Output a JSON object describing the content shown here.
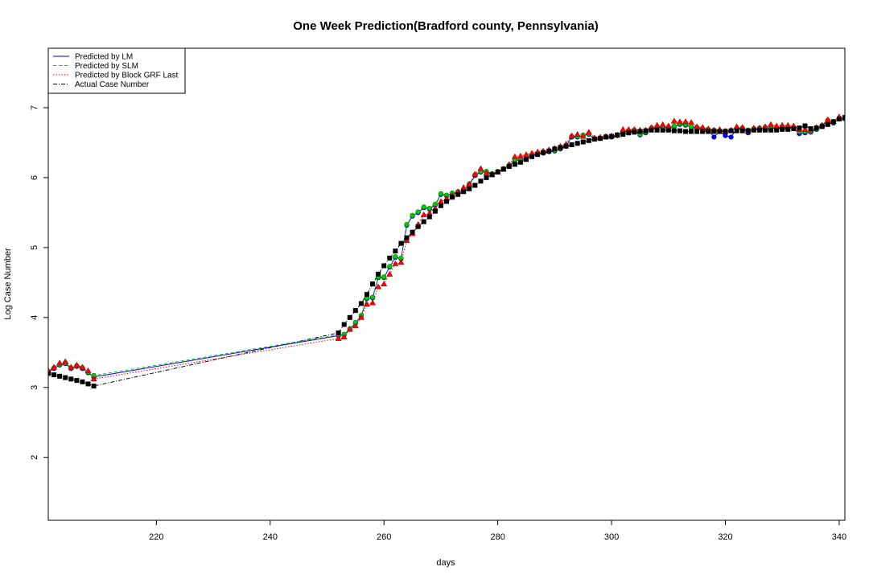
{
  "chart_data": {
    "type": "line",
    "title": "One Week Prediction(Bradford county, Pennsylvania)",
    "xlabel": "days",
    "ylabel": "Log Case Number",
    "xlim": [
      201,
      341
    ],
    "ylim": [
      1.1,
      7.85
    ],
    "x_ticks": [
      220,
      240,
      260,
      280,
      300,
      320,
      340
    ],
    "y_ticks": [
      2,
      3,
      4,
      5,
      6,
      7
    ],
    "legend_position": "top-left",
    "colors": {
      "lm": "#0000ff",
      "slm": "#00cd00",
      "grf": "#ff0000",
      "actual": "#000000"
    },
    "legend": [
      {
        "key": "lm",
        "label": "Predicted by LM"
      },
      {
        "key": "slm",
        "label": "Predicted by SLM"
      },
      {
        "key": "grf",
        "label": "Predicted by Block GRF Last"
      },
      {
        "key": "actual",
        "label": "Actual Case Number"
      }
    ],
    "series": [
      {
        "key": "actual",
        "name": "Actual Case Number",
        "x": [
          201,
          202,
          203,
          204,
          205,
          206,
          207,
          208,
          209,
          252,
          253,
          254,
          255,
          256,
          257,
          258,
          259,
          260,
          261,
          262,
          263,
          264,
          265,
          266,
          267,
          268,
          269,
          270,
          271,
          272,
          273,
          274,
          275,
          276,
          277,
          278,
          279,
          280,
          281,
          282,
          283,
          284,
          285,
          286,
          287,
          288,
          289,
          290,
          291,
          292,
          293,
          294,
          295,
          296,
          297,
          298,
          299,
          300,
          301,
          302,
          303,
          304,
          305,
          306,
          307,
          308,
          309,
          310,
          311,
          312,
          313,
          314,
          315,
          316,
          317,
          318,
          319,
          320,
          321,
          322,
          323,
          324,
          325,
          326,
          327,
          328,
          329,
          330,
          331,
          332,
          333,
          334,
          335,
          336,
          337,
          338,
          339,
          340,
          341
        ],
        "y": [
          3.2,
          3.18,
          3.16,
          3.14,
          3.12,
          3.1,
          3.08,
          3.05,
          3.02,
          3.78,
          3.9,
          4.0,
          4.1,
          4.2,
          4.33,
          4.48,
          4.62,
          4.74,
          4.85,
          4.95,
          5.06,
          5.14,
          5.22,
          5.3,
          5.37,
          5.44,
          5.52,
          5.6,
          5.66,
          5.72,
          5.76,
          5.8,
          5.84,
          5.89,
          5.95,
          6.0,
          6.04,
          6.08,
          6.12,
          6.16,
          6.19,
          6.22,
          6.26,
          6.3,
          6.33,
          6.36,
          6.38,
          6.41,
          6.43,
          6.45,
          6.47,
          6.49,
          6.51,
          6.53,
          6.55,
          6.56,
          6.58,
          6.59,
          6.61,
          6.62,
          6.64,
          6.65,
          6.66,
          6.67,
          6.68,
          6.68,
          6.68,
          6.68,
          6.67,
          6.67,
          6.66,
          6.66,
          6.66,
          6.66,
          6.66,
          6.66,
          6.66,
          6.66,
          6.67,
          6.67,
          6.67,
          6.67,
          6.68,
          6.68,
          6.68,
          6.68,
          6.68,
          6.69,
          6.69,
          6.7,
          6.71,
          6.74,
          6.7,
          6.71,
          6.73,
          6.76,
          6.8,
          6.84,
          6.86
        ]
      },
      {
        "key": "lm",
        "name": "Predicted by LM",
        "x": [
          201,
          202,
          203,
          204,
          205,
          206,
          207,
          208,
          209,
          252,
          253,
          254,
          255,
          256,
          257,
          258,
          259,
          260,
          261,
          262,
          263,
          264,
          265,
          266,
          267,
          268,
          269,
          270,
          271,
          272,
          273,
          274,
          275,
          276,
          277,
          278,
          279,
          280,
          281,
          282,
          283,
          284,
          285,
          286,
          287,
          288,
          289,
          290,
          291,
          292,
          293,
          294,
          295,
          296,
          297,
          298,
          299,
          300,
          301,
          302,
          303,
          304,
          305,
          306,
          307,
          308,
          309,
          310,
          311,
          312,
          313,
          314,
          315,
          316,
          317,
          318,
          319,
          320,
          321,
          322,
          323,
          324,
          325,
          326,
          327,
          328,
          329,
          330,
          331,
          332,
          333,
          334,
          335,
          336,
          337,
          338,
          339,
          340,
          341
        ],
        "y": [
          3.22,
          3.27,
          3.32,
          3.34,
          3.27,
          3.3,
          3.27,
          3.21,
          3.15,
          3.74,
          3.75,
          3.83,
          3.92,
          4.02,
          4.27,
          4.28,
          4.57,
          4.57,
          4.72,
          4.86,
          4.84,
          5.32,
          5.45,
          5.5,
          5.57,
          5.55,
          5.61,
          5.76,
          5.74,
          5.77,
          5.79,
          5.82,
          5.9,
          6.03,
          6.08,
          6.08,
          6.05,
          6.08,
          6.12,
          6.17,
          6.25,
          6.25,
          6.27,
          6.31,
          6.34,
          6.35,
          6.37,
          6.38,
          6.41,
          6.45,
          6.58,
          6.58,
          6.6,
          6.62,
          6.55,
          6.56,
          6.58,
          6.58,
          6.6,
          6.65,
          6.66,
          6.67,
          6.61,
          6.64,
          6.7,
          6.71,
          6.72,
          6.71,
          6.73,
          6.76,
          6.75,
          6.72,
          6.71,
          6.69,
          6.68,
          6.58,
          6.66,
          6.6,
          6.58,
          6.7,
          6.7,
          6.64,
          6.69,
          6.7,
          6.71,
          6.71,
          6.7,
          6.71,
          6.71,
          6.71,
          6.63,
          6.64,
          6.65,
          6.69,
          6.74,
          6.81,
          6.78,
          6.84,
          6.84
        ]
      },
      {
        "key": "slm",
        "name": "Predicted by SLM",
        "x": [
          201,
          202,
          203,
          204,
          205,
          206,
          207,
          208,
          209,
          252,
          253,
          254,
          255,
          256,
          257,
          258,
          259,
          260,
          261,
          262,
          263,
          264,
          265,
          266,
          267,
          268,
          269,
          270,
          271,
          272,
          273,
          274,
          275,
          276,
          277,
          278,
          279,
          280,
          281,
          282,
          283,
          284,
          285,
          286,
          287,
          288,
          289,
          290,
          291,
          292,
          293,
          294,
          295,
          296,
          297,
          298,
          299,
          300,
          301,
          302,
          303,
          304,
          305,
          306,
          307,
          308,
          309,
          310,
          311,
          312,
          313,
          314,
          315,
          316,
          317,
          318,
          319,
          320,
          321,
          322,
          323,
          324,
          325,
          326,
          327,
          328,
          329,
          330,
          331,
          332,
          333,
          334,
          335,
          336,
          337,
          338,
          339,
          340,
          341
        ],
        "y": [
          3.23,
          3.28,
          3.33,
          3.35,
          3.28,
          3.31,
          3.28,
          3.22,
          3.17,
          3.75,
          3.76,
          3.84,
          3.93,
          4.03,
          4.28,
          4.29,
          4.58,
          4.58,
          4.73,
          4.87,
          4.85,
          5.33,
          5.46,
          5.51,
          5.58,
          5.56,
          5.62,
          5.77,
          5.75,
          5.78,
          5.8,
          5.83,
          5.91,
          6.04,
          6.09,
          6.09,
          6.06,
          6.09,
          6.13,
          6.18,
          6.26,
          6.26,
          6.28,
          6.32,
          6.35,
          6.36,
          6.38,
          6.39,
          6.42,
          6.46,
          6.59,
          6.59,
          6.61,
          6.63,
          6.56,
          6.57,
          6.59,
          6.59,
          6.61,
          6.66,
          6.67,
          6.68,
          6.62,
          6.65,
          6.71,
          6.72,
          6.73,
          6.72,
          6.74,
          6.77,
          6.76,
          6.73,
          6.72,
          6.7,
          6.69,
          6.68,
          6.67,
          6.67,
          6.67,
          6.71,
          6.71,
          6.68,
          6.7,
          6.71,
          6.72,
          6.72,
          6.71,
          6.72,
          6.72,
          6.72,
          6.66,
          6.66,
          6.66,
          6.7,
          6.75,
          6.82,
          6.79,
          6.85,
          6.85
        ]
      },
      {
        "key": "grf",
        "name": "Predicted by Block GRF Last",
        "x": [
          201,
          202,
          203,
          204,
          205,
          206,
          207,
          208,
          209,
          252,
          253,
          254,
          255,
          256,
          257,
          258,
          259,
          260,
          261,
          262,
          263,
          264,
          265,
          266,
          267,
          268,
          269,
          270,
          271,
          272,
          273,
          274,
          275,
          276,
          277,
          278,
          279,
          280,
          281,
          282,
          283,
          284,
          285,
          286,
          287,
          288,
          289,
          290,
          291,
          292,
          293,
          294,
          295,
          296,
          297,
          298,
          299,
          300,
          301,
          302,
          303,
          304,
          305,
          306,
          307,
          308,
          309,
          310,
          311,
          312,
          313,
          314,
          315,
          316,
          317,
          318,
          319,
          320,
          321,
          322,
          323,
          324,
          325,
          326,
          327,
          328,
          329,
          330,
          331,
          332,
          333,
          334,
          335,
          336,
          337,
          338,
          339,
          340,
          341
        ],
        "y": [
          3.24,
          3.29,
          3.35,
          3.37,
          3.29,
          3.32,
          3.29,
          3.24,
          3.12,
          3.7,
          3.72,
          3.83,
          3.88,
          4.0,
          4.19,
          4.21,
          4.44,
          4.48,
          4.62,
          4.77,
          4.79,
          5.1,
          5.2,
          5.33,
          5.47,
          5.49,
          5.56,
          5.66,
          5.7,
          5.75,
          5.8,
          5.86,
          5.91,
          6.05,
          6.13,
          6.07,
          6.05,
          6.08,
          6.12,
          6.19,
          6.3,
          6.31,
          6.33,
          6.35,
          6.37,
          6.38,
          6.4,
          6.42,
          6.45,
          6.48,
          6.6,
          6.62,
          6.59,
          6.65,
          6.57,
          6.58,
          6.59,
          6.6,
          6.61,
          6.69,
          6.69,
          6.69,
          6.68,
          6.68,
          6.72,
          6.75,
          6.76,
          6.74,
          6.81,
          6.8,
          6.8,
          6.79,
          6.73,
          6.72,
          6.7,
          6.68,
          6.69,
          6.66,
          6.68,
          6.73,
          6.72,
          6.66,
          6.71,
          6.71,
          6.73,
          6.76,
          6.74,
          6.75,
          6.75,
          6.74,
          6.69,
          6.69,
          6.68,
          6.72,
          6.75,
          6.83,
          6.8,
          6.87,
          6.85
        ]
      }
    ]
  }
}
